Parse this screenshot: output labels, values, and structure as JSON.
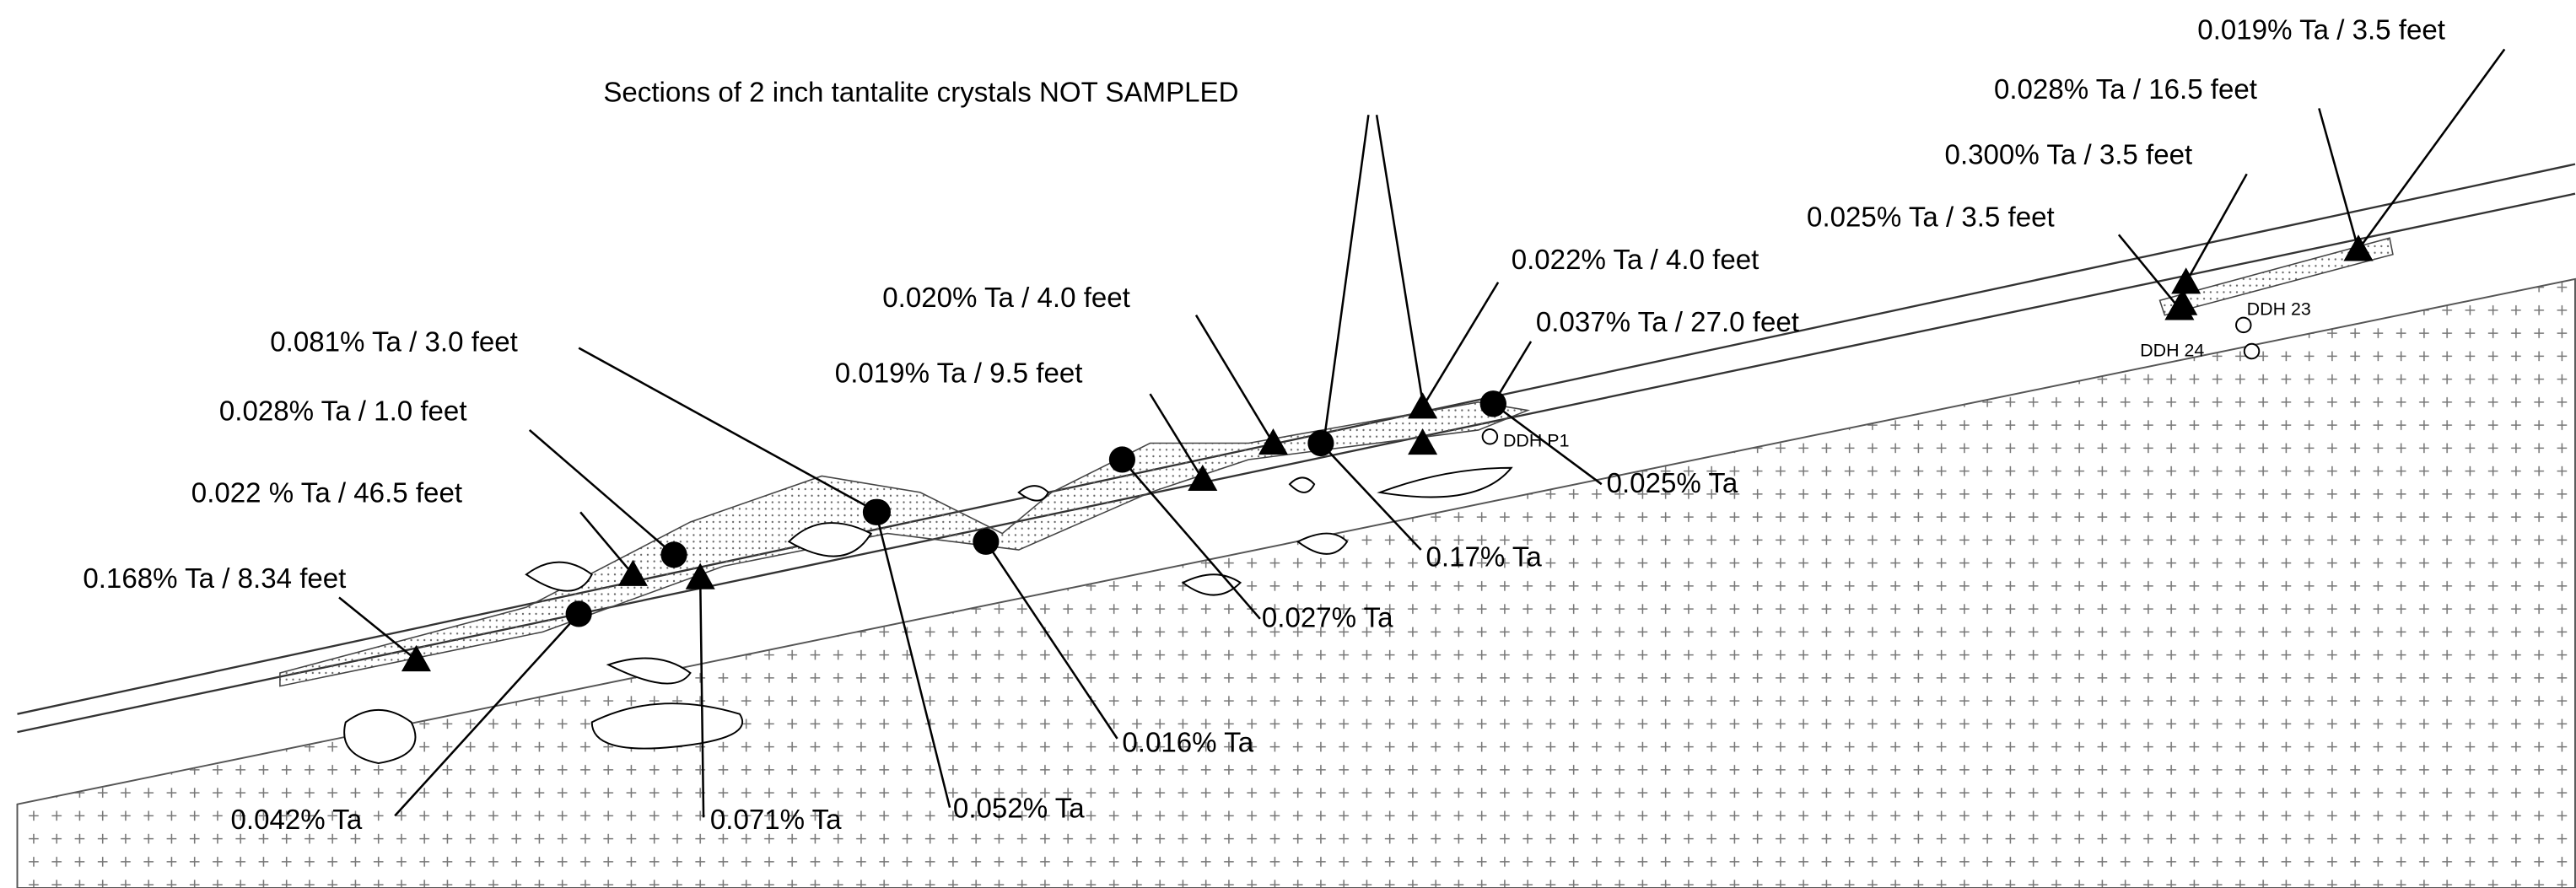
{
  "title": "Sections of 2 inch tantalite crystals NOT SAMPLED",
  "samples": [
    "0.019% Ta / 3.5 feet",
    "0.028% Ta / 16.5 feet",
    "0.300% Ta / 3.5 feet",
    "0.025% Ta / 3.5 feet",
    "0.022% Ta / 4.0 feet",
    "0.037% Ta / 27.0 feet",
    "0.020% Ta / 4.0 feet",
    "0.019% Ta / 9.5 feet",
    "0.081% Ta / 3.0 feet",
    "0.028% Ta / 1.0 feet",
    "0.022 % Ta / 46.5 feet",
    "0.168% Ta / 8.34 feet",
    "0.025% Ta",
    "0.17% Ta",
    "0.027% Ta",
    "0.016% Ta",
    "0.052% Ta",
    "0.071% Ta",
    "0.042% Ta"
  ],
  "drill_holes": [
    "DDH 23",
    "DDH 24",
    "DDH P1"
  ]
}
